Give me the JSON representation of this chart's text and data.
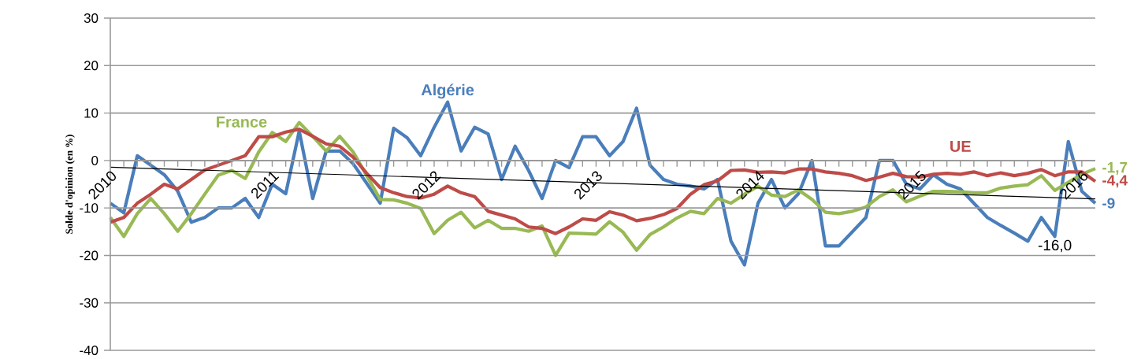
{
  "chart_data": {
    "type": "line",
    "ylabel": "Solde d'opinion (en %)",
    "x": [
      "2010-01",
      "2010-02",
      "2010-03",
      "2010-04",
      "2010-05",
      "2010-06",
      "2010-07",
      "2010-08",
      "2010-09",
      "2010-10",
      "2010-11",
      "2010-12",
      "2011-01",
      "2011-02",
      "2011-03",
      "2011-04",
      "2011-05",
      "2011-06",
      "2011-07",
      "2011-08",
      "2011-09",
      "2011-10",
      "2011-11",
      "2011-12",
      "2012-01",
      "2012-02",
      "2012-03",
      "2012-04",
      "2012-05",
      "2012-06",
      "2012-07",
      "2012-08",
      "2012-09",
      "2012-10",
      "2012-11",
      "2012-12",
      "2013-01",
      "2013-02",
      "2013-03",
      "2013-04",
      "2013-05",
      "2013-06",
      "2013-07",
      "2013-08",
      "2013-09",
      "2013-10",
      "2013-11",
      "2013-12",
      "2014-01",
      "2014-02",
      "2014-03",
      "2014-04",
      "2014-05",
      "2014-06",
      "2014-07",
      "2014-08",
      "2014-09",
      "2014-10",
      "2014-11",
      "2014-12",
      "2015-01",
      "2015-02",
      "2015-03",
      "2015-04",
      "2015-05",
      "2015-06",
      "2015-07",
      "2015-08",
      "2015-09",
      "2015-10",
      "2015-11",
      "2015-12",
      "2016-01",
      "2016-02"
    ],
    "series": [
      {
        "name": "Algérie",
        "color": "#4a7ebb",
        "values": [
          -9,
          -11,
          1,
          -1,
          -3,
          -6.5,
          -13,
          -12,
          -10,
          -10,
          -8,
          -12,
          -5,
          -7,
          6.2,
          -8,
          2,
          2,
          -0.7,
          -4.8,
          -9,
          6.8,
          4.8,
          1,
          7,
          12.3,
          2,
          7,
          5.6,
          -4,
          3,
          -2.1,
          -8,
          0,
          -1.5,
          5,
          5,
          1,
          4,
          11,
          -1,
          -4,
          -5,
          -5.4,
          -6,
          -4,
          -17,
          -22,
          -9,
          -4,
          -10,
          -7,
          0,
          -18,
          -18,
          -15,
          -12,
          0,
          0,
          -5,
          -6,
          -3,
          -5,
          -6,
          -9,
          -12,
          -13.7,
          -15.3,
          -17,
          -12,
          -16,
          4,
          -6.5,
          -9
        ]
      },
      {
        "name": "France",
        "color": "#98b954",
        "values": [
          -12,
          -16,
          -11.2,
          -8,
          -11.2,
          -14.9,
          -11.2,
          -7.1,
          -3.1,
          -2.1,
          -3.8,
          1.8,
          5.9,
          4,
          8,
          5.1,
          2,
          5.1,
          1.8,
          -3.2,
          -8.2,
          -8.3,
          -9,
          -10.1,
          -15.4,
          -12.6,
          -10.9,
          -14.2,
          -12.6,
          -14.3,
          -14.3,
          -14.9,
          -13.8,
          -20,
          -15.3,
          -15.4,
          -15.5,
          -12.9,
          -15.1,
          -18.9,
          -15.6,
          -14,
          -12.1,
          -10.7,
          -11.2,
          -8,
          -9,
          -7.1,
          -5.4,
          -7.3,
          -7.6,
          -6.2,
          -8.2,
          -10.9,
          -11.2,
          -10.7,
          -9.8,
          -7.6,
          -6.2,
          -8.7,
          -7.5,
          -6.5,
          -6.5,
          -6.6,
          -6.8,
          -6.8,
          -5.8,
          -5.4,
          -5.1,
          -3.2,
          -6.3,
          -4.6,
          -2.9,
          -1.7
        ]
      },
      {
        "name": "UE",
        "color": "#be4b48",
        "values": [
          -13,
          -12,
          -9,
          -7.1,
          -5,
          -6,
          -4,
          -2,
          -1,
          0,
          1,
          5,
          5,
          6,
          6.6,
          5.1,
          3.5,
          3,
          0.7,
          -2.7,
          -5.7,
          -6.8,
          -7.6,
          -7.9,
          -7.1,
          -5.4,
          -6.8,
          -7.6,
          -10.7,
          -11.5,
          -12.3,
          -14,
          -14.3,
          -15.4,
          -14,
          -12.3,
          -12.6,
          -10.8,
          -11.5,
          -12.7,
          -12.2,
          -11.4,
          -10.1,
          -7.1,
          -5.1,
          -4.3,
          -2.1,
          -2,
          -2.5,
          -2.4,
          -2.6,
          -1.8,
          -1.8,
          -2.4,
          -2.7,
          -3.2,
          -4.2,
          -3.5,
          -2.7,
          -3.4,
          -3.5,
          -2.9,
          -2.7,
          -2.9,
          -2.4,
          -3.2,
          -2.6,
          -3.2,
          -2.7,
          -1.9,
          -3.2,
          -2.4,
          -2.4,
          -4.4
        ]
      },
      {
        "type": "line",
        "color": "#000000",
        "x": [
          "2010-01",
          "2016-02"
        ],
        "values": [
          -1.4,
          -8.1
        ]
      }
    ],
    "annotations": [
      {
        "text": "-9",
        "x": "2016-02",
        "y": -9
      },
      {
        "text": "-1,7",
        "x": "2016-02",
        "y": -1.7
      },
      {
        "text": "-4,4",
        "x": "2016-02",
        "y": -4.4
      },
      {
        "text": "-16,0",
        "x": "2015-11",
        "y": -16
      }
    ],
    "xlim": [
      "2010-01",
      "2016-02"
    ],
    "xticks": [
      {
        "value": "2010-01",
        "label": "2010"
      },
      {
        "value": "2011-01",
        "label": "2011"
      },
      {
        "value": "2012-01",
        "label": "2012"
      },
      {
        "value": "2013-01",
        "label": "2013"
      },
      {
        "value": "2014-01",
        "label": "2014"
      },
      {
        "value": "2015-01",
        "label": "2015"
      },
      {
        "value": "2016-01",
        "label": "2016"
      }
    ],
    "ylim": [
      -40,
      30
    ],
    "yticks": [
      -40,
      -30,
      -20,
      -10,
      0,
      10,
      20,
      30
    ],
    "grid": "y",
    "legend": false,
    "marker": "none",
    "line_style": "solid"
  }
}
